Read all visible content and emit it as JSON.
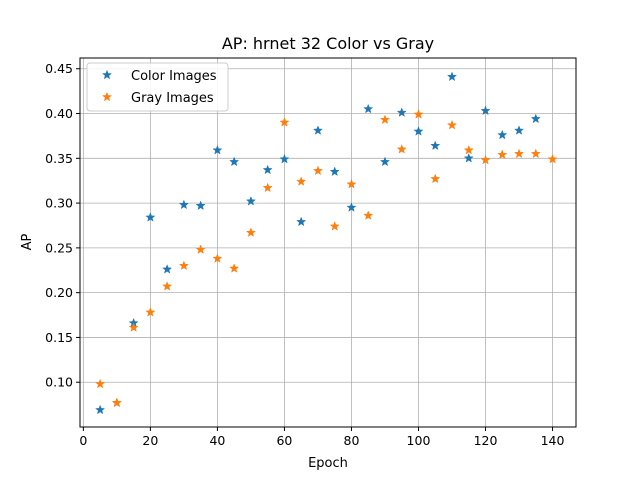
{
  "chart_data": {
    "type": "scatter",
    "title": "AP: hrnet 32 Color vs Gray",
    "xlabel": "Epoch",
    "ylabel": "AP",
    "xlim": [
      -1,
      147
    ],
    "ylim": [
      0.05,
      0.462
    ],
    "xticks": [
      0,
      20,
      40,
      60,
      80,
      100,
      120,
      140
    ],
    "yticks": [
      0.1,
      0.15,
      0.2,
      0.25,
      0.3,
      0.35,
      0.4,
      0.45
    ],
    "grid": true,
    "legend_position": "upper-left",
    "marker": "star",
    "series": [
      {
        "name": "Color Images",
        "color": "#1f77b4",
        "x": [
          5,
          10,
          15,
          20,
          25,
          30,
          35,
          40,
          45,
          50,
          55,
          60,
          65,
          70,
          75,
          80,
          85,
          90,
          95,
          100,
          105,
          110,
          115,
          120,
          125,
          130,
          135
        ],
        "y": [
          0.069,
          0.077,
          0.166,
          0.284,
          0.226,
          0.298,
          0.297,
          0.359,
          0.346,
          0.302,
          0.337,
          0.349,
          0.279,
          0.381,
          0.335,
          0.295,
          0.405,
          0.346,
          0.401,
          0.38,
          0.364,
          0.441,
          0.35,
          0.403,
          0.376,
          0.381,
          0.394
        ]
      },
      {
        "name": "Gray Images",
        "color": "#ff7f0e",
        "x": [
          5,
          10,
          15,
          20,
          25,
          30,
          35,
          40,
          45,
          50,
          55,
          60,
          65,
          70,
          75,
          80,
          85,
          90,
          95,
          100,
          105,
          110,
          115,
          120,
          125,
          130,
          135,
          140
        ],
        "y": [
          0.098,
          0.077,
          0.161,
          0.178,
          0.207,
          0.23,
          0.248,
          0.238,
          0.227,
          0.267,
          0.317,
          0.39,
          0.324,
          0.336,
          0.274,
          0.321,
          0.286,
          0.393,
          0.36,
          0.399,
          0.327,
          0.387,
          0.359,
          0.348,
          0.354,
          0.355,
          0.355,
          0.349
        ]
      }
    ]
  }
}
